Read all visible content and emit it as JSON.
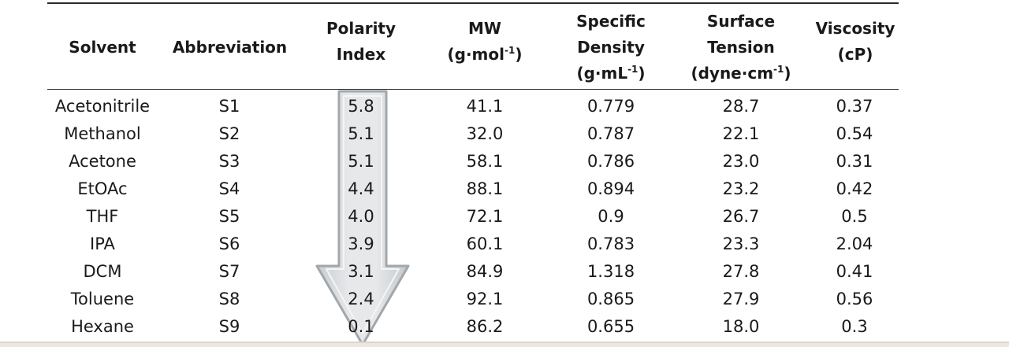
{
  "table": {
    "headers": [
      {
        "key": "solvent",
        "lines": [
          "Solvent"
        ]
      },
      {
        "key": "abbreviation",
        "lines": [
          "Abbreviation"
        ]
      },
      {
        "key": "polarity_index",
        "lines": [
          "Polarity",
          "Index"
        ]
      },
      {
        "key": "mw",
        "lines": [
          "MW",
          "(g·mol",
          "-1",
          ")"
        ]
      },
      {
        "key": "specific_density",
        "lines": [
          "Specific",
          "Density",
          "(g·mL",
          "-1",
          ")"
        ]
      },
      {
        "key": "surface_tension",
        "lines": [
          "Surface",
          "Tension",
          "(dyne·cm",
          "-1",
          ")"
        ]
      },
      {
        "key": "viscosity",
        "lines": [
          "Viscosity",
          "(cP)"
        ]
      }
    ],
    "rows": [
      [
        "Acetonitrile",
        "S1",
        "5.8",
        "41.1",
        "0.779",
        "28.7",
        "0.37"
      ],
      [
        "Methanol",
        "S2",
        "5.1",
        "32.0",
        "0.787",
        "22.1",
        "0.54"
      ],
      [
        "Acetone",
        "S3",
        "5.1",
        "58.1",
        "0.786",
        "23.0",
        "0.31"
      ],
      [
        "EtOAc",
        "S4",
        "4.4",
        "88.1",
        "0.894",
        "23.2",
        "0.42"
      ],
      [
        "THF",
        "S5",
        "4.0",
        "72.1",
        "0.9",
        "26.7",
        "0.5"
      ],
      [
        "IPA",
        "S6",
        "3.9",
        "60.1",
        "0.783",
        "23.3",
        "2.04"
      ],
      [
        "DCM",
        "S7",
        "3.1",
        "84.9",
        "1.318",
        "27.8",
        "0.41"
      ],
      [
        "Toluene",
        "S8",
        "2.4",
        "92.1",
        "0.865",
        "27.9",
        "0.56"
      ],
      [
        "Hexane",
        "S9",
        "0.1",
        "86.2",
        "0.655",
        "18.0",
        "0.3"
      ]
    ]
  },
  "arrow": {
    "icon": "down-arrow-icon",
    "fill_color": "#d9dcde",
    "stroke_color": "#9ea3a7"
  }
}
